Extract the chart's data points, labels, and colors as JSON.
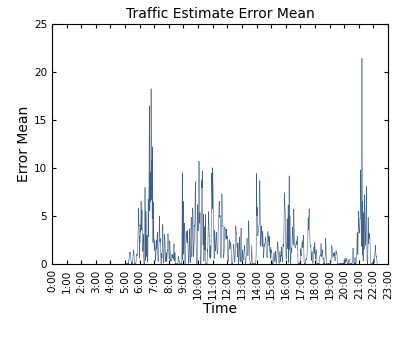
{
  "title": "Traffic Estimate Error Mean",
  "xlabel": "Time",
  "ylabel": "Error Mean",
  "xlim": [
    0,
    1380
  ],
  "ylim": [
    0,
    25
  ],
  "yticks": [
    0,
    5,
    10,
    15,
    20,
    25
  ],
  "xtick_positions": [
    0,
    60,
    120,
    180,
    240,
    300,
    360,
    420,
    480,
    540,
    600,
    660,
    720,
    780,
    840,
    900,
    960,
    1020,
    1080,
    1140,
    1200,
    1260,
    1320,
    1380
  ],
  "xtick_labels": [
    "0:00",
    "1:00",
    "2:00",
    "3:00",
    "4:00",
    "5:00",
    "6:00",
    "7:00",
    "8:00",
    "9:00",
    "10:00",
    "11:00",
    "12:00",
    "13:00",
    "14:00",
    "15:00",
    "16:00",
    "17:00",
    "18:00",
    "19:00",
    "20:00",
    "21:00",
    "22:00",
    "23:00"
  ],
  "line_color": "#3a5f8a",
  "bg_color": "#ffffff",
  "title_fontsize": 10,
  "label_fontsize": 10,
  "tick_fontsize": 7.5
}
